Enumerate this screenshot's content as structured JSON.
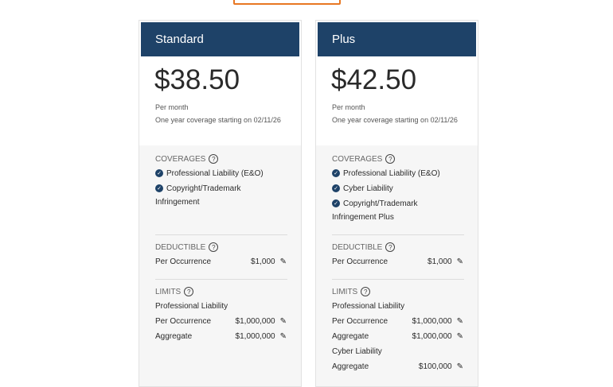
{
  "plans": [
    {
      "name": "Standard",
      "price": "$38.50",
      "period": "Per month",
      "coverage_start": "One year coverage starting on 02/11/26",
      "coverages_label": "COVERAGES",
      "coverages": [
        "Professional Liability (E&O)",
        "Copyright/Trademark"
      ],
      "coverage_cont": "Infringement",
      "deductible_label": "DEDUCTIBLE",
      "deductible": {
        "label": "Per Occurrence",
        "value": "$1,000"
      },
      "limits_label": "LIMITS",
      "limit_groups": [
        {
          "title": "Professional Liability",
          "rows": [
            {
              "label": "Per Occurrence",
              "value": "$1,000,000"
            },
            {
              "label": "Aggregate",
              "value": "$1,000,000"
            }
          ]
        }
      ]
    },
    {
      "name": "Plus",
      "price": "$42.50",
      "period": "Per month",
      "coverage_start": "One year coverage starting on 02/11/26",
      "coverages_label": "COVERAGES",
      "coverages": [
        "Professional Liability (E&O)",
        "Cyber Liability",
        "Copyright/Trademark"
      ],
      "coverage_cont": "Infringement Plus",
      "deductible_label": "DEDUCTIBLE",
      "deductible": {
        "label": "Per Occurrence",
        "value": "$1,000"
      },
      "limits_label": "LIMITS",
      "limit_groups": [
        {
          "title": "Professional Liability",
          "rows": [
            {
              "label": "Per Occurrence",
              "value": "$1,000,000"
            },
            {
              "label": "Aggregate",
              "value": "$1,000,000"
            }
          ]
        },
        {
          "title": "Cyber Liability",
          "rows": [
            {
              "label": "Aggregate",
              "value": "$100,000"
            }
          ]
        }
      ]
    }
  ],
  "colors": {
    "header": "#1e4268",
    "accent": "#e87722"
  }
}
